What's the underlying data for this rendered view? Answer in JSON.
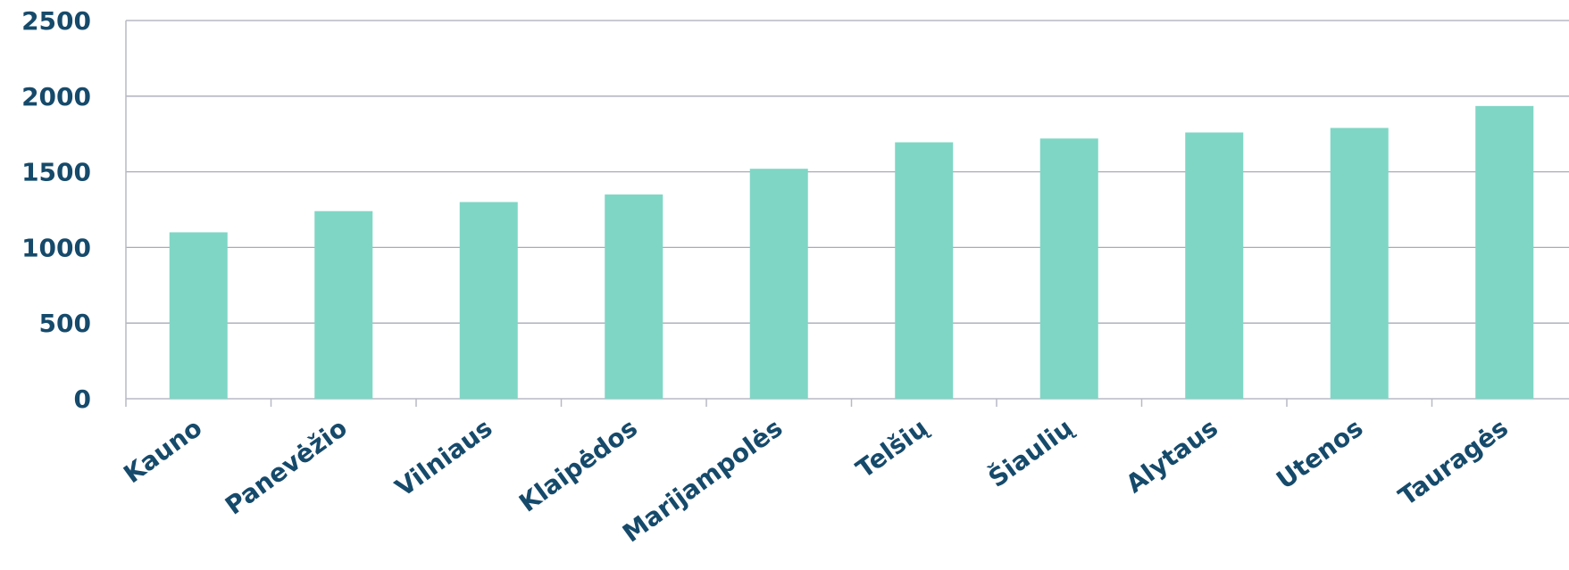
{
  "chart_data": {
    "type": "bar",
    "categories": [
      "Kauno",
      "Panevėžio",
      "Vilniaus",
      "Klaipėdos",
      "Marijampolės",
      "Telšių",
      "Šiaulių",
      "Alytaus",
      "Utenos",
      "Tauragės"
    ],
    "values": [
      1100,
      1240,
      1300,
      1350,
      1520,
      1695,
      1720,
      1760,
      1790,
      1935
    ],
    "title": "",
    "xlabel": "",
    "ylabel": "",
    "ylim": [
      0,
      2500
    ],
    "yticks": [
      0,
      500,
      1000,
      1500,
      2000,
      2500
    ],
    "grid": true,
    "legend": "none"
  },
  "colors": {
    "bar": "#7fd6c5",
    "text": "#164a6b",
    "grid": "#a9aab8",
    "axis": "#b8b9c6"
  }
}
